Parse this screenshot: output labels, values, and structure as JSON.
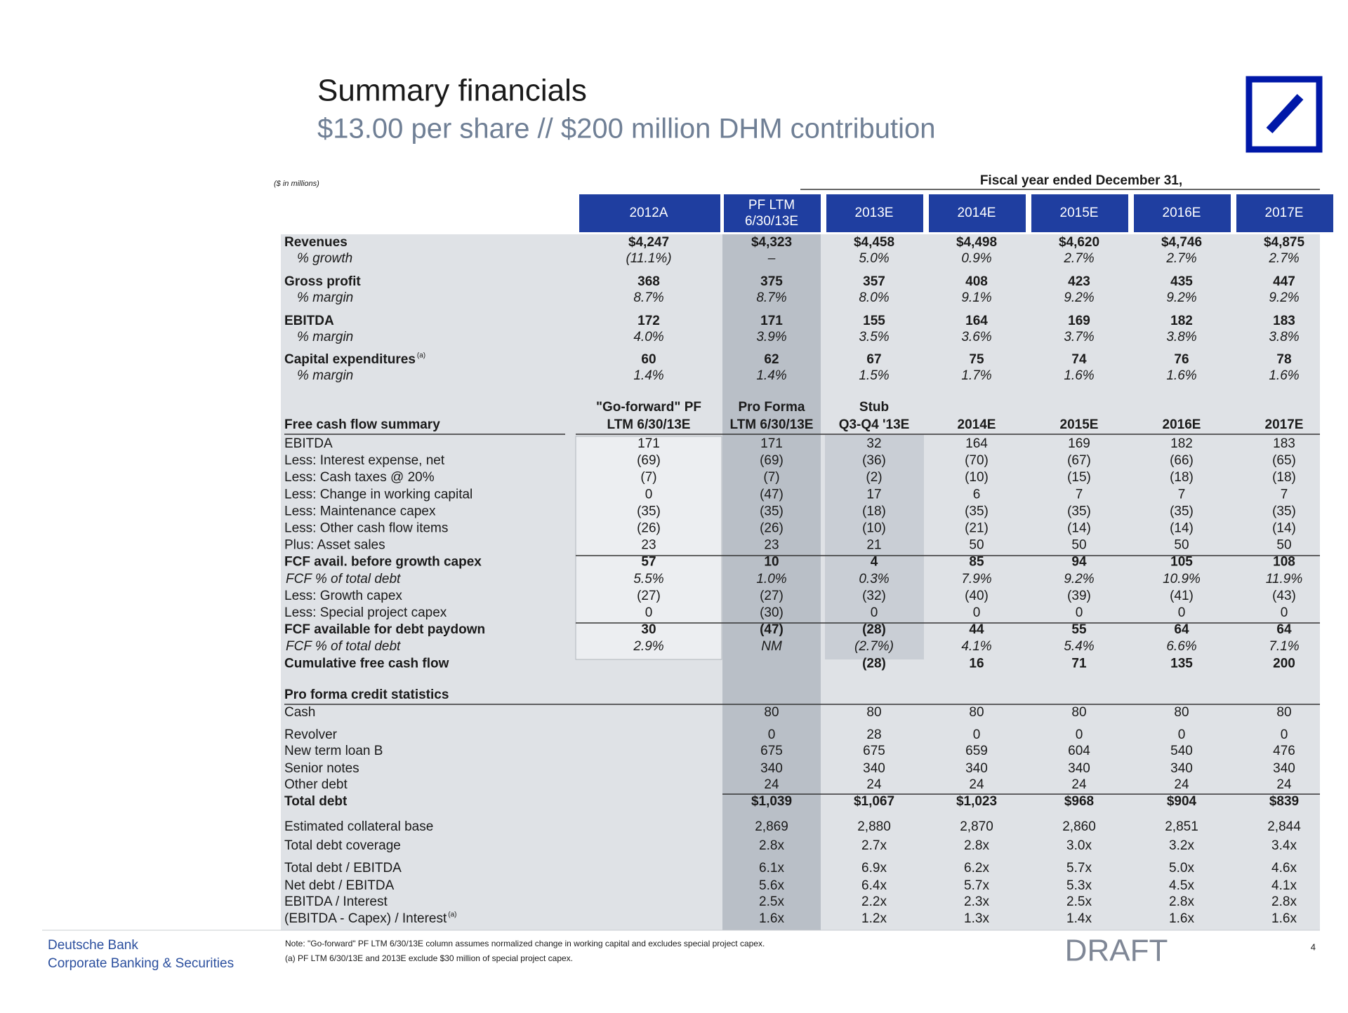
{
  "header": {
    "title": "Summary financials",
    "subtitle": "$13.00 per share // $200 million DHM contribution",
    "units": "($ in millions)",
    "fiscal_label": "Fiscal year ended December 31,"
  },
  "top_table": {
    "columns": [
      [
        "2012A"
      ],
      [
        "PF LTM",
        "6/30/13E"
      ],
      [
        "2013E"
      ],
      [
        "2014E"
      ],
      [
        "2015E"
      ],
      [
        "2016E"
      ],
      [
        "2017E"
      ]
    ],
    "rows": [
      {
        "label": "Revenues",
        "values": [
          "$4,247",
          "$4,323",
          "$4,458",
          "$4,498",
          "$4,620",
          "$4,746",
          "$4,875"
        ],
        "sub": {
          "label": "% growth",
          "values": [
            "(11.1%)",
            "–",
            "5.0%",
            "0.9%",
            "2.7%",
            "2.7%",
            "2.7%"
          ]
        }
      },
      {
        "label": "Gross profit",
        "values": [
          "368",
          "375",
          "357",
          "408",
          "423",
          "435",
          "447"
        ],
        "sub": {
          "label": "% margin",
          "values": [
            "8.7%",
            "8.7%",
            "8.0%",
            "9.1%",
            "9.2%",
            "9.2%",
            "9.2%"
          ]
        }
      },
      {
        "label": "EBITDA",
        "values": [
          "172",
          "171",
          "155",
          "164",
          "169",
          "182",
          "183"
        ],
        "sub": {
          "label": "% margin",
          "values": [
            "4.0%",
            "3.9%",
            "3.5%",
            "3.6%",
            "3.7%",
            "3.8%",
            "3.8%"
          ]
        }
      },
      {
        "label": "Capital expenditures",
        "note": "(a)",
        "values": [
          "60",
          "62",
          "67",
          "75",
          "74",
          "76",
          "78"
        ],
        "sub": {
          "label": "% margin",
          "values": [
            "1.4%",
            "1.4%",
            "1.5%",
            "1.7%",
            "1.6%",
            "1.6%",
            "1.6%"
          ]
        }
      }
    ]
  },
  "fcf_table": {
    "title": "Free cash flow summary",
    "columns": [
      [
        "\"Go-forward\" PF",
        "LTM 6/30/13E"
      ],
      [
        "Pro Forma",
        "LTM 6/30/13E"
      ],
      [
        "Stub",
        "Q3-Q4 '13E"
      ],
      [
        "2014E"
      ],
      [
        "2015E"
      ],
      [
        "2016E"
      ],
      [
        "2017E"
      ]
    ],
    "rows": [
      {
        "label": "EBITDA",
        "values": [
          "171",
          "171",
          "32",
          "164",
          "169",
          "182",
          "183"
        ]
      },
      {
        "label": "Less:  Interest expense, net",
        "values": [
          "(69)",
          "(69)",
          "(36)",
          "(70)",
          "(67)",
          "(66)",
          "(65)"
        ]
      },
      {
        "label": "Less:  Cash taxes @ 20%",
        "values": [
          "(7)",
          "(7)",
          "(2)",
          "(10)",
          "(15)",
          "(18)",
          "(18)"
        ]
      },
      {
        "label": "Less:  Change in working capital",
        "values": [
          "0",
          "(47)",
          "17",
          "6",
          "7",
          "7",
          "7"
        ]
      },
      {
        "label": "Less:  Maintenance capex",
        "values": [
          "(35)",
          "(35)",
          "(18)",
          "(35)",
          "(35)",
          "(35)",
          "(35)"
        ]
      },
      {
        "label": "Less:  Other cash flow items",
        "values": [
          "(26)",
          "(26)",
          "(10)",
          "(21)",
          "(14)",
          "(14)",
          "(14)"
        ]
      },
      {
        "label": "Plus:  Asset sales",
        "values": [
          "23",
          "23",
          "21",
          "50",
          "50",
          "50",
          "50"
        ]
      },
      {
        "label": "FCF avail. before growth capex",
        "style": "bold",
        "values": [
          "57",
          "10",
          "4",
          "85",
          "94",
          "105",
          "108"
        ]
      },
      {
        "label": "FCF % of total debt",
        "style": "italic",
        "values": [
          "5.5%",
          "1.0%",
          "0.3%",
          "7.9%",
          "9.2%",
          "10.9%",
          "11.9%"
        ]
      },
      {
        "label": "Less:  Growth capex",
        "values": [
          "(27)",
          "(27)",
          "(32)",
          "(40)",
          "(39)",
          "(41)",
          "(43)"
        ]
      },
      {
        "label": "Less:  Special project capex",
        "values": [
          "0",
          "(30)",
          "0",
          "0",
          "0",
          "0",
          "0"
        ]
      },
      {
        "label": "FCF available for debt paydown",
        "style": "bold",
        "values": [
          "30",
          "(47)",
          "(28)",
          "44",
          "55",
          "64",
          "64"
        ]
      },
      {
        "label": "FCF % of total debt",
        "style": "italic",
        "values": [
          "2.9%",
          "NM",
          "(2.7%)",
          "4.1%",
          "5.4%",
          "6.6%",
          "7.1%"
        ]
      },
      {
        "label": "Cumulative free cash flow",
        "style": "bold",
        "values": [
          null,
          null,
          "(28)",
          "16",
          "71",
          "135",
          "200"
        ]
      }
    ]
  },
  "credit_table": {
    "title": "Pro forma credit statistics",
    "rows": [
      {
        "label": "Cash",
        "values": [
          "80",
          "80",
          "80",
          "80",
          "80",
          "80"
        ]
      },
      {
        "label": "Revolver",
        "values": [
          "0",
          "28",
          "0",
          "0",
          "0",
          "0"
        ]
      },
      {
        "label": "New term loan B",
        "values": [
          "675",
          "675",
          "659",
          "604",
          "540",
          "476"
        ]
      },
      {
        "label": "Senior notes",
        "values": [
          "340",
          "340",
          "340",
          "340",
          "340",
          "340"
        ]
      },
      {
        "label": "Other debt",
        "values": [
          "24",
          "24",
          "24",
          "24",
          "24",
          "24"
        ]
      },
      {
        "label": "Total debt",
        "style": "bold",
        "values": [
          "$1,039",
          "$1,067",
          "$1,023",
          "$968",
          "$904",
          "$839"
        ]
      },
      {
        "label": "Estimated collateral base",
        "values": [
          "2,869",
          "2,880",
          "2,870",
          "2,860",
          "2,851",
          "2,844"
        ]
      },
      {
        "label": "Total debt coverage",
        "values": [
          "2.8x",
          "2.7x",
          "2.8x",
          "3.0x",
          "3.2x",
          "3.4x"
        ]
      },
      {
        "label": "Total debt / EBITDA",
        "values": [
          "6.1x",
          "6.9x",
          "6.2x",
          "5.7x",
          "5.0x",
          "4.6x"
        ]
      },
      {
        "label": "Net debt / EBITDA",
        "values": [
          "5.6x",
          "6.4x",
          "5.7x",
          "5.3x",
          "4.5x",
          "4.1x"
        ]
      },
      {
        "label": "EBITDA / Interest",
        "values": [
          "2.5x",
          "2.2x",
          "2.3x",
          "2.5x",
          "2.8x",
          "2.8x"
        ]
      },
      {
        "label": "(EBITDA - Capex) / Interest",
        "note": "(a)",
        "values": [
          "1.6x",
          "1.2x",
          "1.3x",
          "1.4x",
          "1.6x",
          "1.6x"
        ]
      }
    ]
  },
  "footer": {
    "company": "Deutsche Bank",
    "division": "Corporate Banking & Securities",
    "notes": [
      "Note: \"Go-forward\" PF LTM 6/30/13E column assumes normalized change in working capital and excludes special project capex.",
      "(a) PF LTM 6/30/13E and 2013E exclude $30 million of special project capex."
    ],
    "draft": "DRAFT",
    "page_number": "4"
  }
}
